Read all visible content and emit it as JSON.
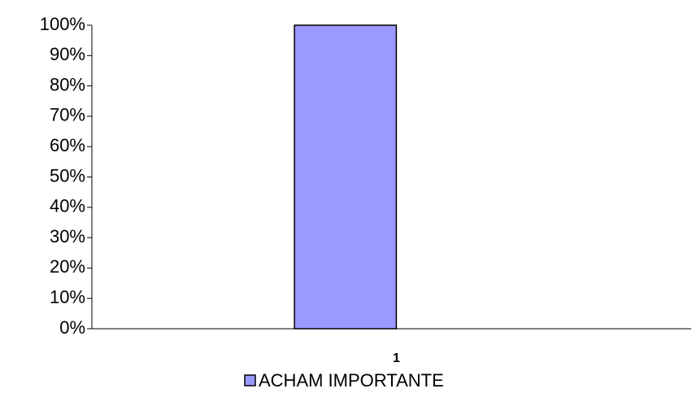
{
  "chart_data": {
    "type": "bar",
    "categories": [
      "1"
    ],
    "series": [
      {
        "name": "ACHAM IMPORTANTE",
        "color": "#9999ff",
        "values": [
          100
        ]
      }
    ],
    "ylim": [
      0,
      100
    ],
    "yticks": [
      {
        "value": 0,
        "label": "0%"
      },
      {
        "value": 10,
        "label": "10%"
      },
      {
        "value": 20,
        "label": "20%"
      },
      {
        "value": 30,
        "label": "30%"
      },
      {
        "value": 40,
        "label": "40%"
      },
      {
        "value": 50,
        "label": "50%"
      },
      {
        "value": 60,
        "label": "60%"
      },
      {
        "value": 70,
        "label": "70%"
      },
      {
        "value": 80,
        "label": "80%"
      },
      {
        "value": 90,
        "label": "90%"
      },
      {
        "value": 100,
        "label": "100%"
      }
    ],
    "grid": false,
    "legend": "bottom"
  }
}
